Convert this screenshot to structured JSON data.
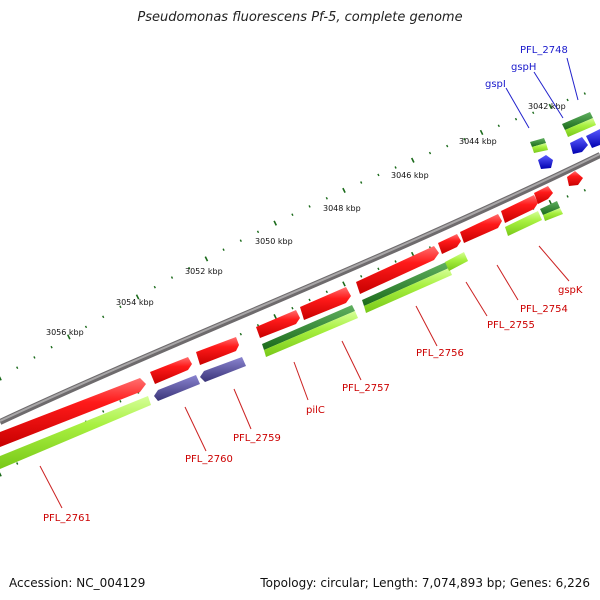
{
  "title": "Pseudomonas fluorescens Pf-5, complete genome",
  "footer": {
    "accession": "Accession: NC_004129",
    "summary": "Topology: circular; Length: 7,074,893 bp; Genes: 6,226"
  },
  "colors": {
    "backbone": "#7d7a7c",
    "forward_gene": "#ee1111",
    "reverse_gene": "#99e833",
    "reverse_gene_dark": "#2a8a2a",
    "purple_gene": "#4b458f",
    "blue_gene": "#1515ee",
    "red_label": "#cc0000",
    "blue_label": "#0000cc",
    "tick": "#1a6a1a"
  },
  "scale": {
    "ticks": [
      "3042 kbp",
      "3044 kbp",
      "3046 kbp",
      "3048 kbp",
      "3050 kbp",
      "3052 kbp",
      "3054 kbp",
      "3056 kbp"
    ]
  },
  "gene_labels": [
    {
      "name": "PFL_2748",
      "color": "blue"
    },
    {
      "name": "gspH",
      "color": "blue"
    },
    {
      "name": "gspI",
      "color": "blue"
    },
    {
      "name": "gspK",
      "color": "red"
    },
    {
      "name": "PFL_2754",
      "color": "red"
    },
    {
      "name": "PFL_2755",
      "color": "red"
    },
    {
      "name": "PFL_2756",
      "color": "red"
    },
    {
      "name": "PFL_2757",
      "color": "red"
    },
    {
      "name": "pilC",
      "color": "red"
    },
    {
      "name": "PFL_2759",
      "color": "red"
    },
    {
      "name": "PFL_2760",
      "color": "red"
    },
    {
      "name": "PFL_2761",
      "color": "red"
    }
  ]
}
